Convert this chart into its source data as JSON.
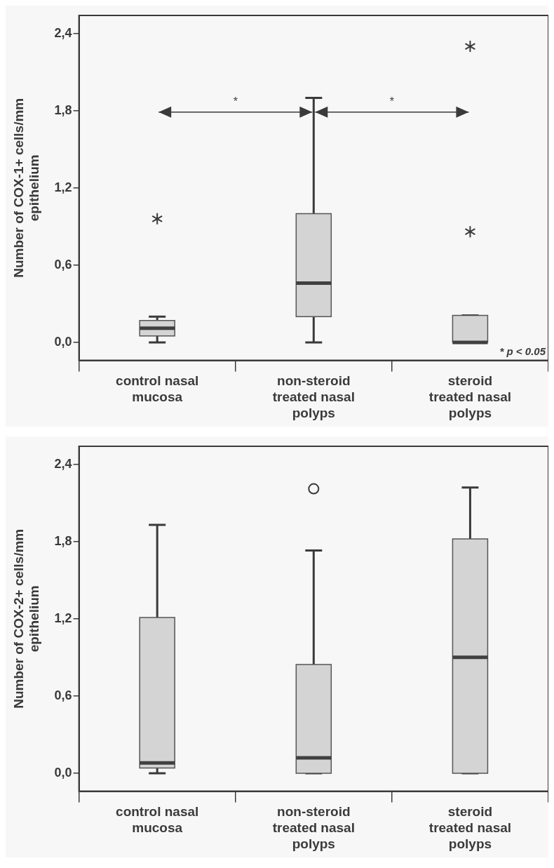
{
  "chart_data": [
    {
      "type": "box",
      "ylabel": "Number of COX-1+ cells/mm epithelium",
      "categories": [
        "control nasal mucosa",
        "non-steroid treated nasal polyps",
        "steroid treated nasal polyps"
      ],
      "ylim": [
        -0.14,
        2.54
      ],
      "yticks": [
        {
          "value": 0,
          "label": "0,0"
        },
        {
          "value": 0.6,
          "label": "0,6"
        },
        {
          "value": 1.2,
          "label": "1,2"
        },
        {
          "value": 1.8,
          "label": "1,8"
        },
        {
          "value": 2.4,
          "label": "2,4"
        }
      ],
      "grid": false,
      "marker": "star",
      "series": [
        {
          "color": "#d4d4d4",
          "boxes": [
            {
              "low": 0,
              "q1": 0.05,
              "median": 0.11,
              "q3": 0.17,
              "high": 0.2,
              "outliers": [
                0.96
              ]
            },
            {
              "low": 0,
              "q1": 0.2,
              "median": 0.46,
              "q3": 1.0,
              "high": 1.9
            },
            {
              "low": 0,
              "q1": 0,
              "median": 0,
              "q3": 0.21,
              "high": 0.21,
              "outliers": [
                0.86,
                2.3
              ]
            }
          ]
        }
      ],
      "annotations": [
        "*",
        "*",
        "* p < 0.05"
      ]
    },
    {
      "type": "box",
      "ylabel": "Number of COX-2+ cells/mm epithelium",
      "categories": [
        "control nasal mucosa",
        "non-steroid treated nasal polyps",
        "steroid treated nasal polyps"
      ],
      "ylim": [
        -0.14,
        2.54
      ],
      "yticks": [
        {
          "value": 0,
          "label": "0,0"
        },
        {
          "value": 0.6,
          "label": "0,6"
        },
        {
          "value": 1.2,
          "label": "1,2"
        },
        {
          "value": 1.8,
          "label": "1,8"
        },
        {
          "value": 2.4,
          "label": "2,4"
        }
      ],
      "grid": false,
      "marker": "circle",
      "series": [
        {
          "color": "#d4d4d4",
          "boxes": [
            {
              "low": 0,
              "q1": 0.04,
              "median": 0.08,
              "q3": 1.21,
              "high": 1.93
            },
            {
              "low": 0,
              "q1": 0,
              "median": 0.12,
              "q3": 0.845,
              "high": 1.73,
              "outliers": [
                2.21
              ]
            },
            {
              "low": 0,
              "q1": 0,
              "median": 0.9,
              "q3": 1.82,
              "high": 2.22
            }
          ]
        }
      ]
    }
  ]
}
